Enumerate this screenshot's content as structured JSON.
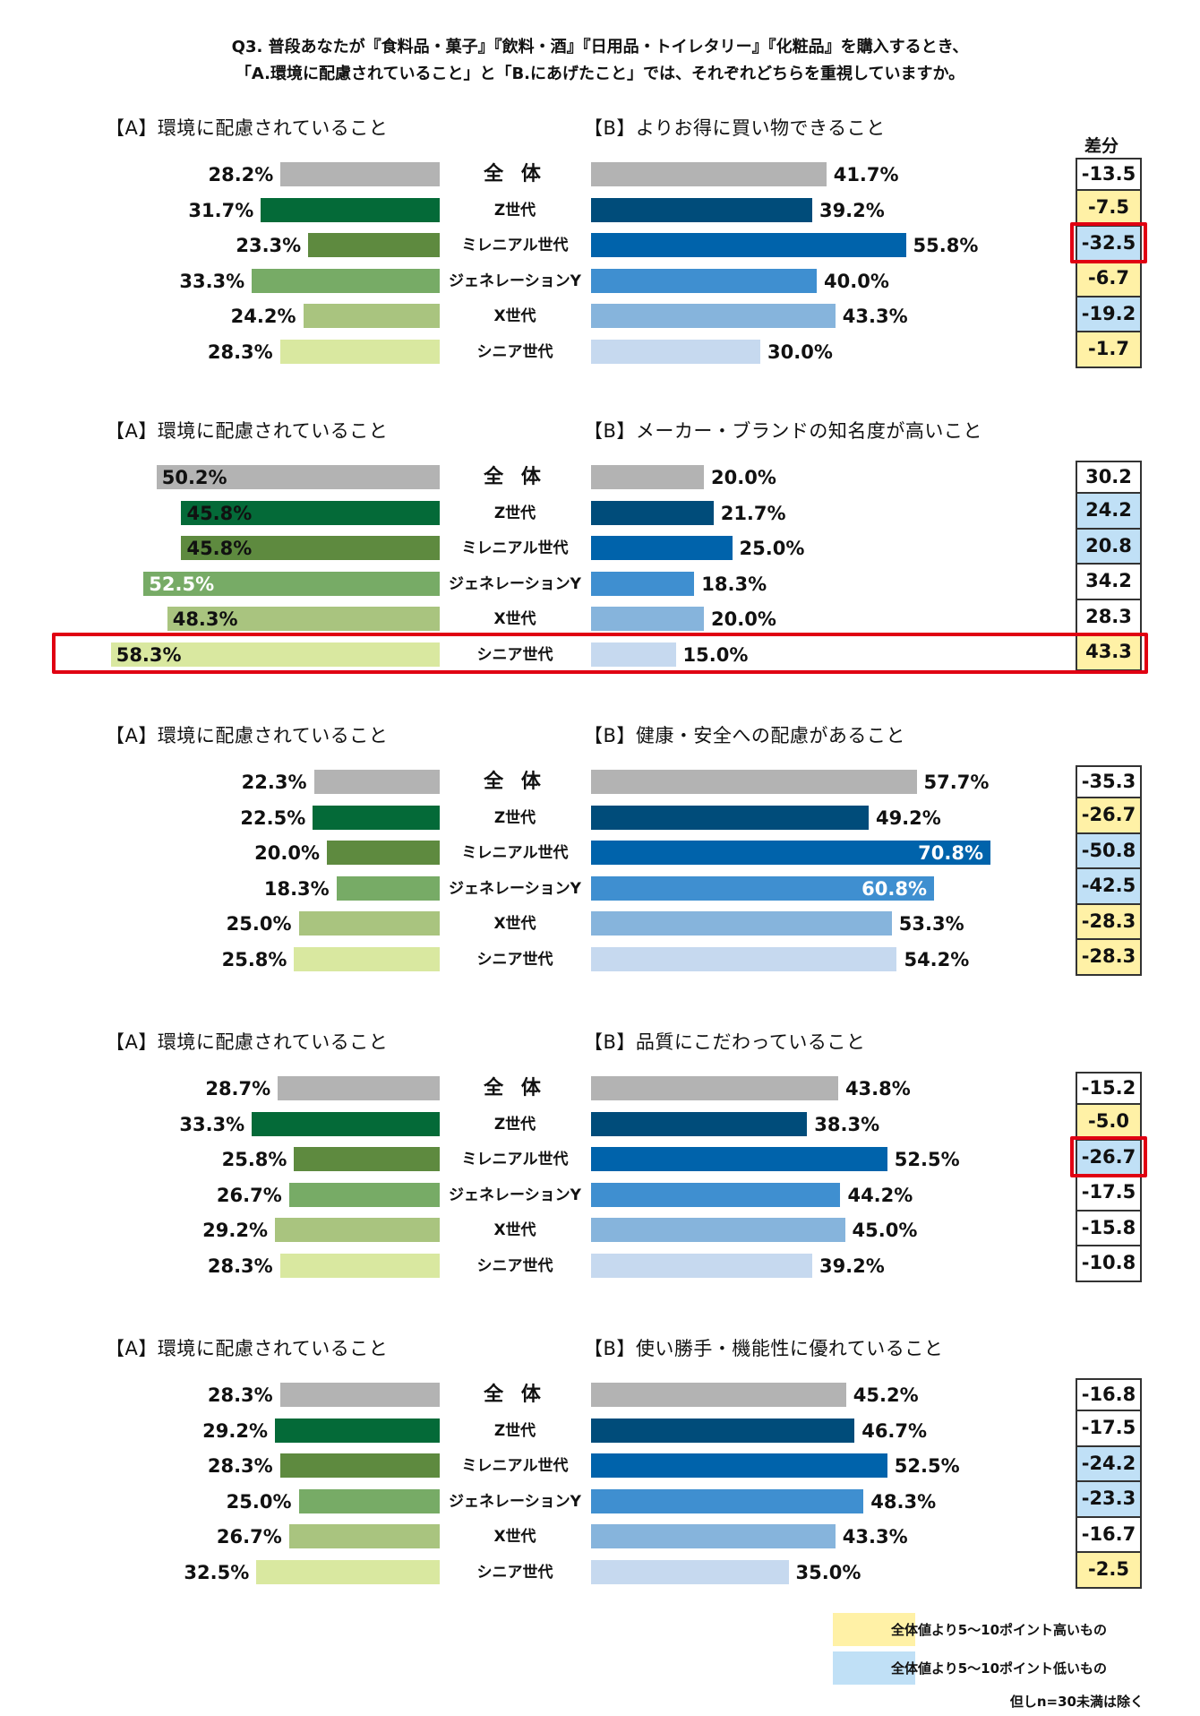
{
  "title_lines": [
    "Q3. 普段あなたが『食料品・菓子』『飲料・酒』『日用品・トイレタリー』『化粧品』を購入するとき、",
    "「A.環境に配慮されていること」と「B.にあげたこと」では、それぞれどちらを重視していますか。"
  ],
  "diff_header": "差分",
  "generations": [
    "全 体",
    "Z世代",
    "ミレニアル世代",
    "ジェネレーションY",
    "X世代",
    "シニア世代"
  ],
  "colors": {
    "a_bars": [
      "#b3b3b3",
      "#046a38",
      "#5e8a3f",
      "#77ab66",
      "#a9c47f",
      "#d9e8a0"
    ],
    "b_bars": [
      "#b3b3b3",
      "#004c7a",
      "#0063ab",
      "#3f8fd0",
      "#86b4dc",
      "#c6d9ef"
    ],
    "highlight_yellow": "#fff1a6",
    "highlight_blue": "#c0e0f6",
    "red_frame": "#e00012"
  },
  "chart_data": [
    {
      "type": "bar",
      "label_a": "【A】環境に配慮されていること",
      "label_b": "【B】よりお得に買い物できること",
      "categories": [
        "全 体",
        "Z世代",
        "ミレニアル世代",
        "ジェネレーションY",
        "X世代",
        "シニア世代"
      ],
      "series": [
        {
          "name": "【A】環境に配慮されていること",
          "values": [
            28.2,
            31.7,
            23.3,
            33.3,
            24.2,
            28.3
          ],
          "labels": [
            "28.2%",
            "31.7%",
            "23.3%",
            "33.3%",
            "24.2%",
            "28.3%"
          ]
        },
        {
          "name": "【B】よりお得に買い物できること",
          "values": [
            41.7,
            39.2,
            55.8,
            40.0,
            43.3,
            30.0
          ],
          "labels": [
            "41.7%",
            "39.2%",
            "55.8%",
            "40.0%",
            "43.3%",
            "30.0%"
          ]
        }
      ],
      "diff": [
        "-13.5",
        "-7.5",
        "-32.5",
        "-6.7",
        "-19.2",
        "-1.7"
      ],
      "diff_highlight": [
        "none",
        "yellow",
        "blue",
        "yellow",
        "blue",
        "yellow"
      ],
      "red_frames": [
        "diff-2"
      ]
    },
    {
      "type": "bar",
      "label_a": "【A】環境に配慮されていること",
      "label_b": "【B】メーカー・ブランドの知名度が高いこと",
      "categories": [
        "全 体",
        "Z世代",
        "ミレニアル世代",
        "ジェネレーションY",
        "X世代",
        "シニア世代"
      ],
      "series": [
        {
          "name": "【A】環境に配慮されていること",
          "values": [
            50.2,
            45.8,
            45.8,
            52.5,
            48.3,
            58.3
          ],
          "labels": [
            "50.2%",
            "45.8%",
            "45.8%",
            "52.5%",
            "48.3%",
            "58.3%"
          ]
        },
        {
          "name": "【B】メーカー・ブランドの知名度が高いこと",
          "values": [
            20.0,
            21.7,
            25.0,
            18.3,
            20.0,
            15.0
          ],
          "labels": [
            "20.0%",
            "21.7%",
            "25.0%",
            "18.3%",
            "20.0%",
            "15.0%"
          ]
        }
      ],
      "diff": [
        "30.2",
        "24.2",
        "20.8",
        "34.2",
        "28.3",
        "43.3"
      ],
      "diff_highlight": [
        "none",
        "blue",
        "blue",
        "none",
        "none",
        "yellow"
      ],
      "red_frames": [
        "row-5"
      ]
    },
    {
      "type": "bar",
      "label_a": "【A】環境に配慮されていること",
      "label_b": "【B】健康・安全への配慮があること",
      "categories": [
        "全 体",
        "Z世代",
        "ミレニアル世代",
        "ジェネレーションY",
        "X世代",
        "シニア世代"
      ],
      "series": [
        {
          "name": "【A】環境に配慮されていること",
          "values": [
            22.3,
            22.5,
            20.0,
            18.3,
            25.0,
            25.8
          ],
          "labels": [
            "22.3%",
            "22.5%",
            "20.0%",
            "18.3%",
            "25.0%",
            "25.8%"
          ]
        },
        {
          "name": "【B】健康・安全への配慮があること",
          "values": [
            57.7,
            49.2,
            70.8,
            60.8,
            53.3,
            54.2
          ],
          "labels": [
            "57.7%",
            "49.2%",
            "70.8%",
            "60.8%",
            "53.3%",
            "54.2%"
          ]
        }
      ],
      "diff": [
        "-35.3",
        "-26.7",
        "-50.8",
        "-42.5",
        "-28.3",
        "-28.3"
      ],
      "diff_highlight": [
        "none",
        "yellow",
        "blue",
        "blue",
        "yellow",
        "yellow"
      ],
      "red_frames": []
    },
    {
      "type": "bar",
      "label_a": "【A】環境に配慮されていること",
      "label_b": "【B】品質にこだわっていること",
      "categories": [
        "全 体",
        "Z世代",
        "ミレニアル世代",
        "ジェネレーションY",
        "X世代",
        "シニア世代"
      ],
      "series": [
        {
          "name": "【A】環境に配慮されていること",
          "values": [
            28.7,
            33.3,
            25.8,
            26.7,
            29.2,
            28.3
          ],
          "labels": [
            "28.7%",
            "33.3%",
            "25.8%",
            "26.7%",
            "29.2%",
            "28.3%"
          ]
        },
        {
          "name": "【B】品質にこだわっていること",
          "values": [
            43.8,
            38.3,
            52.5,
            44.2,
            45.0,
            39.2
          ],
          "labels": [
            "43.8%",
            "38.3%",
            "52.5%",
            "44.2%",
            "45.0%",
            "39.2%"
          ]
        }
      ],
      "diff": [
        "-15.2",
        "-5.0",
        "-26.7",
        "-17.5",
        "-15.8",
        "-10.8"
      ],
      "diff_highlight": [
        "none",
        "yellow",
        "blue",
        "none",
        "none",
        "none"
      ],
      "red_frames": [
        "diff-2"
      ]
    },
    {
      "type": "bar",
      "label_a": "【A】環境に配慮されていること",
      "label_b": "【B】使い勝手・機能性に優れていること",
      "categories": [
        "全 体",
        "Z世代",
        "ミレニアル世代",
        "ジェネレーションY",
        "X世代",
        "シニア世代"
      ],
      "series": [
        {
          "name": "【A】環境に配慮されていること",
          "values": [
            28.3,
            29.2,
            28.3,
            25.0,
            26.7,
            32.5
          ],
          "labels": [
            "28.3%",
            "29.2%",
            "28.3%",
            "25.0%",
            "26.7%",
            "32.5%"
          ]
        },
        {
          "name": "【B】使い勝手・機能性に優れていること",
          "values": [
            45.2,
            46.7,
            52.5,
            48.3,
            43.3,
            35.0
          ],
          "labels": [
            "45.2%",
            "46.7%",
            "52.5%",
            "48.3%",
            "43.3%",
            "35.0%"
          ]
        }
      ],
      "diff": [
        "-16.8",
        "-17.5",
        "-24.2",
        "-23.3",
        "-16.7",
        "-2.5"
      ],
      "diff_highlight": [
        "none",
        "none",
        "blue",
        "blue",
        "none",
        "yellow"
      ],
      "red_frames": []
    }
  ],
  "legend": [
    {
      "text": "全体値より5～10ポイント高いもの",
      "color": "yellow"
    },
    {
      "text": "全体値より5～10ポイント低いもの",
      "color": "blue"
    }
  ],
  "footnote": "但しn=30未満は除く"
}
